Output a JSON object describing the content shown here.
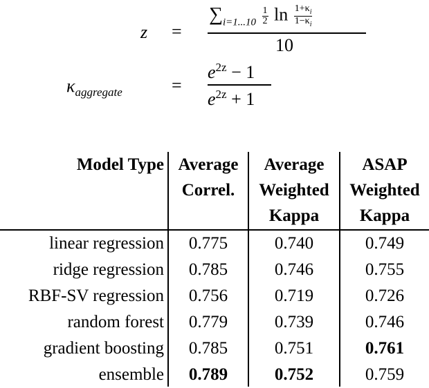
{
  "equations": {
    "eq1": {
      "lhs": "z",
      "eq_sign": "=",
      "num_sum": "∑",
      "num_sum_sub": "i=1...10",
      "num_half_top": "1",
      "num_half_bot": "2",
      "num_ln": "ln",
      "num_frac_top": "1+κ",
      "num_frac_top_sub": "i",
      "num_frac_bot": "1−κ",
      "num_frac_bot_sub": "i",
      "den": "10"
    },
    "eq2": {
      "lhs": "κ",
      "lhs_sub": "aggregate",
      "eq_sign": "=",
      "num_base": "e",
      "num_exp": "2z",
      "num_rest": " − 1",
      "den_base": "e",
      "den_exp": "2z",
      "den_rest": " + 1"
    }
  },
  "table": {
    "headers": {
      "model_type": [
        "Model Type"
      ],
      "avg_correl": [
        "Average",
        "Correl."
      ],
      "avg_wkappa": [
        "Average",
        "Weighted",
        "Kappa"
      ],
      "asap_wkappa": [
        "ASAP",
        "Weighted",
        "Kappa"
      ]
    },
    "rows": [
      {
        "model": "linear regression",
        "avg_correl": "0.775",
        "avg_wkappa": "0.740",
        "asap_wkappa": "0.749"
      },
      {
        "model": "ridge regression",
        "avg_correl": "0.785",
        "avg_wkappa": "0.746",
        "asap_wkappa": "0.755"
      },
      {
        "model": "RBF-SV regression",
        "avg_correl": "0.756",
        "avg_wkappa": "0.719",
        "asap_wkappa": "0.726"
      },
      {
        "model": "random forest",
        "avg_correl": "0.779",
        "avg_wkappa": "0.739",
        "asap_wkappa": "0.746"
      },
      {
        "model": "gradient boosting",
        "avg_correl": "0.785",
        "avg_wkappa": "0.751",
        "asap_wkappa": "0.761"
      },
      {
        "model": "ensemble",
        "avg_correl": "0.789",
        "avg_wkappa": "0.752",
        "asap_wkappa": "0.759"
      }
    ],
    "bold_cells": [
      {
        "row": 4,
        "col": "asap_wkappa"
      },
      {
        "row": 5,
        "col": "avg_correl"
      },
      {
        "row": 5,
        "col": "avg_wkappa"
      }
    ]
  }
}
